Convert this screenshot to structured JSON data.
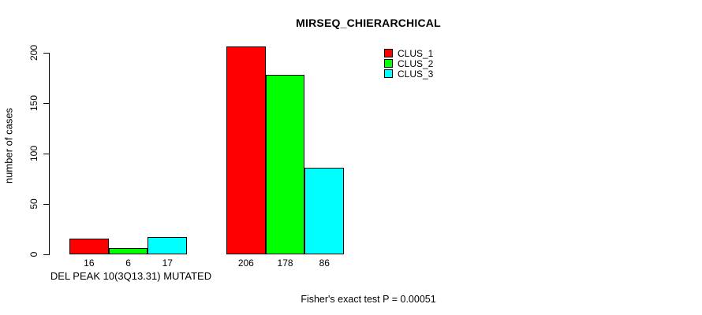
{
  "chart_data": {
    "type": "bar",
    "title": "MIRSEQ_CHIERARCHICAL",
    "ylabel": "number of cases",
    "xlabel": "DEL PEAK 10(3Q13.31) MUTATED",
    "footnote": "Fisher's exact test P = 0.00051",
    "ylim": [
      0,
      200
    ],
    "yticks": [
      0,
      50,
      100,
      150,
      200
    ],
    "grid": false,
    "legend_position": "top-right",
    "bar_border_color": "#000000",
    "background_color": "#ffffff",
    "series": [
      {
        "name": "CLUS_1",
        "color": "#ff0000"
      },
      {
        "name": "CLUS_2",
        "color": "#00ff00"
      },
      {
        "name": "CLUS_3",
        "color": "#00ffff"
      }
    ],
    "groups": [
      {
        "label": "DEL PEAK 10(3Q13.31) MUTATED",
        "values": [
          16,
          6,
          17
        ]
      },
      {
        "label": "",
        "values": [
          206,
          178,
          86
        ]
      }
    ]
  }
}
